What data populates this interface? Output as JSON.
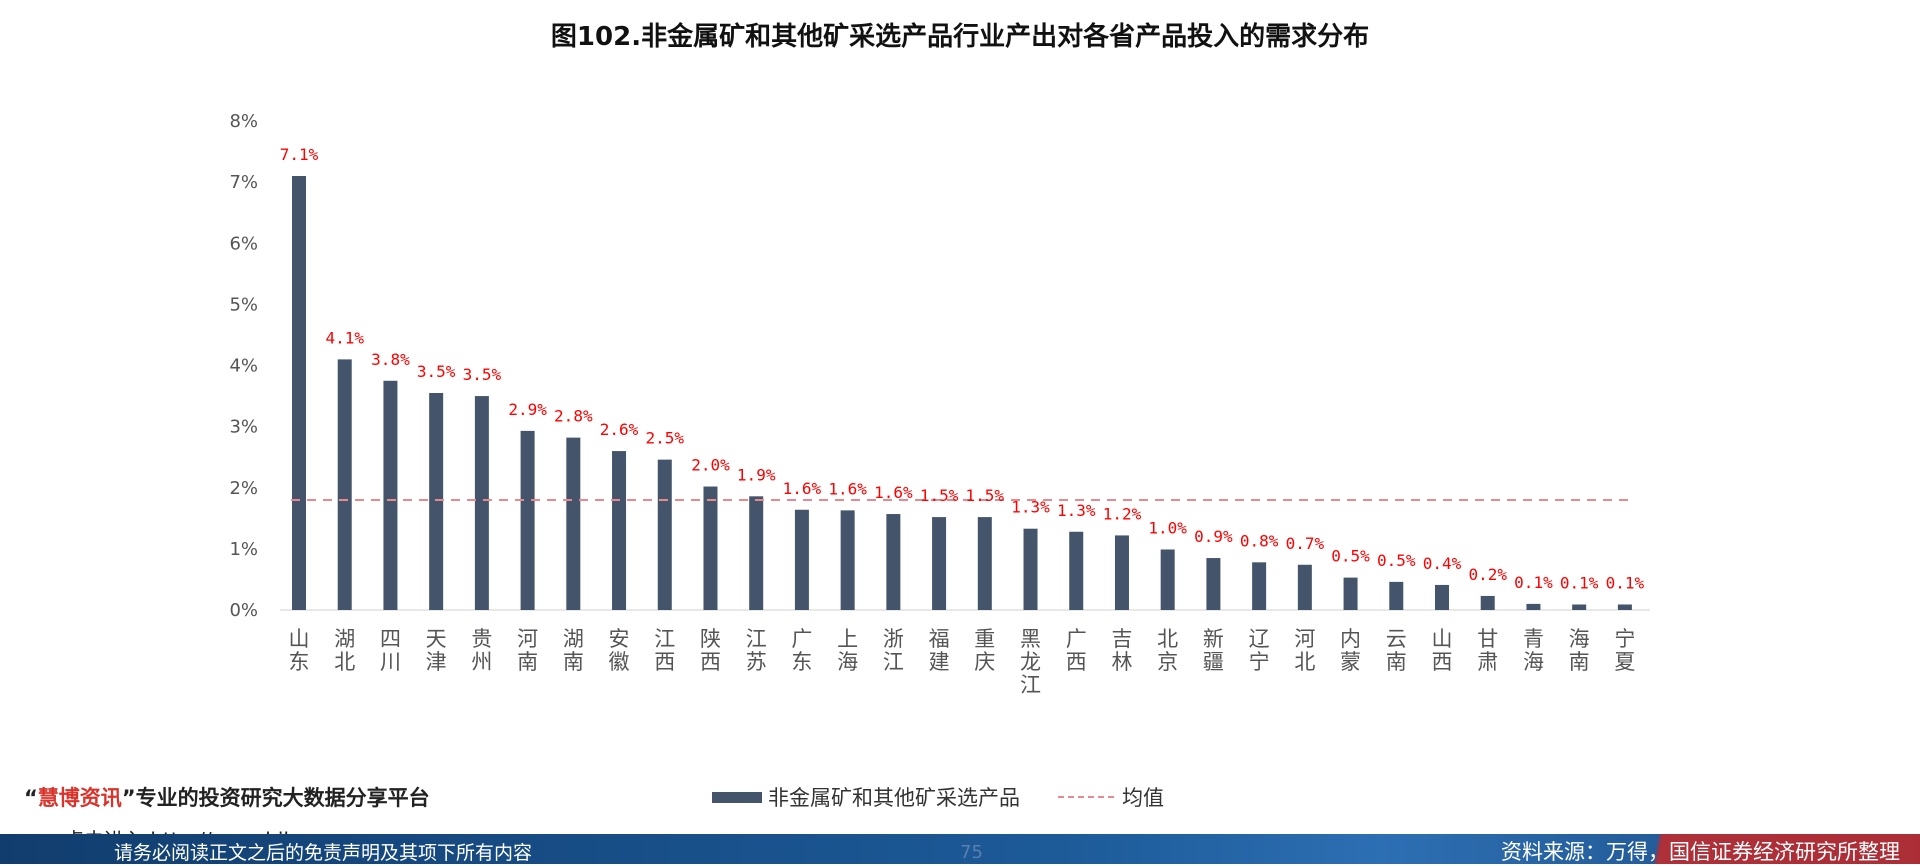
{
  "title": "图102.非金属矿和其他矿采选产品行业产出对各省产品投入的需求分布",
  "chart_data": {
    "type": "bar",
    "categories": [
      "山东",
      "湖北",
      "四川",
      "天津",
      "贵州",
      "河南",
      "湖南",
      "安徽",
      "江西",
      "陕西",
      "江苏",
      "广东",
      "上海",
      "浙江",
      "福建",
      "重庆",
      "黑龙江",
      "广西",
      "吉林",
      "北京",
      "新疆",
      "辽宁",
      "河北",
      "内蒙",
      "云南",
      "山西",
      "甘肃",
      "青海",
      "海南",
      "宁夏"
    ],
    "values": [
      7.1,
      4.1,
      3.75,
      3.55,
      3.5,
      2.93,
      2.82,
      2.6,
      2.46,
      2.02,
      1.86,
      1.64,
      1.63,
      1.57,
      1.52,
      1.52,
      1.33,
      1.28,
      1.22,
      0.99,
      0.85,
      0.78,
      0.74,
      0.53,
      0.46,
      0.41,
      0.23,
      0.1,
      0.09,
      0.09
    ],
    "data_labels": [
      "7.1%",
      "4.1%",
      "3.8%",
      "3.5%",
      "3.5%",
      "2.9%",
      "2.8%",
      "2.6%",
      "2.5%",
      "2.0%",
      "1.9%",
      "1.6%",
      "1.6%",
      "1.6%",
      "1.5%",
      "1.5%",
      "1.3%",
      "1.3%",
      "1.2%",
      "1.0%",
      "0.9%",
      "0.8%",
      "0.7%",
      "0.5%",
      "0.5%",
      "0.4%",
      "0.2%",
      "0.1%",
      "0.1%",
      "0.1%"
    ],
    "series_name": "非金属矿和其他矿采选产品",
    "mean_name": "均值",
    "mean_value": 1.8,
    "ylim": [
      0,
      8
    ],
    "yticks": [
      "0%",
      "1%",
      "2%",
      "3%",
      "4%",
      "5%",
      "6%",
      "7%",
      "8%"
    ],
    "bar_color": "#44546a",
    "mean_color": "#e8888f",
    "label_color": "#ff0000",
    "legend_position": "bottom-center"
  },
  "footer": {
    "brand_quote_open": "“",
    "brand_name": "慧博资讯",
    "brand_quote_close": "”",
    "brand_slogan": "专业的投资研究大数据分享平台",
    "ghost_link": "点击进入 http://www.hibor.com.cn",
    "disclaimer": "请务必阅读正文之后的免责声明及其项下所有内容",
    "page_number": "75",
    "source": "资料来源：万得，国信证券经济研究所整理"
  }
}
